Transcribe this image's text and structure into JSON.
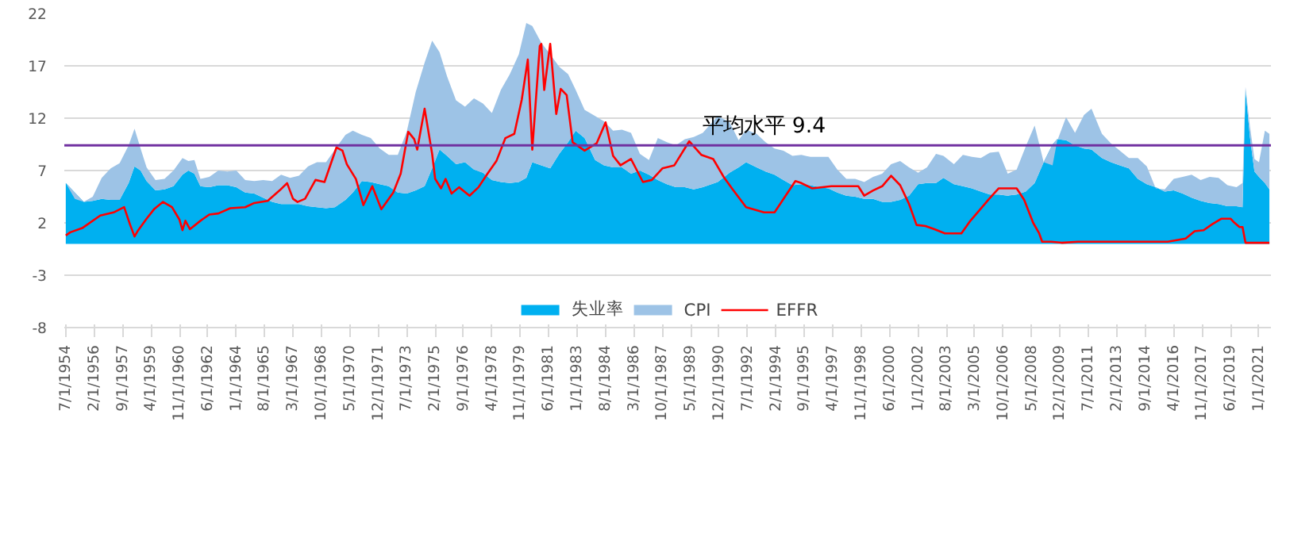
{
  "chart_data": {
    "type": "area",
    "stacked": true,
    "x": [
      "1954-07",
      "1955-01",
      "1955-07",
      "1956-01",
      "1956-07",
      "1957-01",
      "1957-07",
      "1958-01",
      "1958-05",
      "1958-09",
      "1959-01",
      "1959-07",
      "1960-01",
      "1960-07",
      "1961-01",
      "1961-05",
      "1961-09",
      "1962-01",
      "1962-07",
      "1963-01",
      "1963-07",
      "1964-01",
      "1964-07",
      "1965-01",
      "1965-07",
      "1966-01",
      "1966-07",
      "1967-01",
      "1967-07",
      "1968-01",
      "1968-07",
      "1969-01",
      "1969-07",
      "1970-02",
      "1970-07",
      "1971-01",
      "1971-07",
      "1972-01",
      "1972-07",
      "1973-01",
      "1973-07",
      "1974-01",
      "1974-07",
      "1974-12",
      "1975-05",
      "1975-10",
      "1976-04",
      "1976-10",
      "1977-04",
      "1977-10",
      "1978-04",
      "1978-10",
      "1979-04",
      "1979-10",
      "1980-03",
      "1980-07",
      "1981-01",
      "1981-07",
      "1982-01",
      "1982-07",
      "1982-12",
      "1983-06",
      "1984-01",
      "1984-07",
      "1985-01",
      "1985-07",
      "1986-01",
      "1986-07",
      "1987-01",
      "1987-07",
      "1988-01",
      "1988-07",
      "1989-01",
      "1989-07",
      "1990-01",
      "1990-11",
      "1991-07",
      "1992-01",
      "1992-06",
      "1993-01",
      "1993-07",
      "1994-01",
      "1994-07",
      "1995-01",
      "1995-07",
      "1996-01",
      "1996-07",
      "1997-01",
      "1997-07",
      "1998-01",
      "1998-07",
      "1999-01",
      "1999-07",
      "2000-01",
      "2000-07",
      "2001-01",
      "2001-07",
      "2002-01",
      "2002-07",
      "2003-01",
      "2003-06",
      "2004-01",
      "2004-07",
      "2005-01",
      "2005-07",
      "2006-01",
      "2006-07",
      "2007-01",
      "2007-07",
      "2008-01",
      "2008-07",
      "2009-01",
      "2009-07",
      "2009-10",
      "2010-04",
      "2010-10",
      "2011-04",
      "2011-09",
      "2012-04",
      "2012-10",
      "2013-04",
      "2013-10",
      "2014-04",
      "2014-10",
      "2015-04",
      "2015-10",
      "2016-04",
      "2016-10",
      "2017-04",
      "2017-10",
      "2018-04",
      "2018-10",
      "2019-04",
      "2019-10",
      "2020-02",
      "2020-04",
      "2020-07",
      "2020-10",
      "2021-01",
      "2021-05",
      "2021-08"
    ],
    "series": [
      {
        "name": "失业率",
        "color": "#00b0f0",
        "values": [
          5.8,
          4.9,
          4.0,
          4.1,
          4.3,
          4.2,
          4.2,
          5.8,
          7.4,
          7.0,
          6.0,
          5.1,
          5.2,
          5.5,
          6.6,
          7.0,
          6.7,
          5.5,
          5.4,
          5.6,
          5.6,
          5.4,
          4.9,
          4.8,
          4.4,
          4.0,
          3.8,
          3.8,
          3.8,
          3.6,
          3.5,
          3.4,
          3.5,
          4.2,
          4.9,
          6.0,
          5.9,
          5.7,
          5.5,
          4.9,
          4.8,
          5.1,
          5.5,
          7.2,
          9.0,
          8.4,
          7.6,
          7.8,
          7.1,
          6.8,
          6.1,
          5.9,
          5.8,
          5.9,
          6.3,
          7.8,
          7.5,
          7.2,
          8.6,
          9.7,
          10.8,
          10.1,
          8.0,
          7.5,
          7.3,
          7.3,
          6.7,
          7.0,
          6.6,
          6.1,
          5.7,
          5.4,
          5.4,
          5.2,
          5.4,
          5.9,
          6.8,
          7.3,
          7.8,
          7.3,
          6.9,
          6.6,
          6.1,
          5.6,
          5.7,
          5.6,
          5.4,
          5.3,
          4.9,
          4.6,
          4.5,
          4.3,
          4.3,
          4.0,
          4.0,
          4.2,
          4.6,
          5.7,
          5.8,
          5.8,
          6.3,
          5.7,
          5.5,
          5.3,
          5.0,
          4.7,
          4.7,
          4.6,
          4.7,
          5.0,
          5.8,
          7.8,
          9.5,
          10.0,
          9.9,
          9.4,
          9.1,
          9.0,
          8.2,
          7.8,
          7.5,
          7.2,
          6.2,
          5.7,
          5.4,
          5.0,
          5.1,
          4.8,
          4.4,
          4.1,
          3.9,
          3.8,
          3.6,
          3.6,
          3.5,
          14.7,
          10.2,
          6.9,
          6.4,
          5.8,
          5.2
        ]
      },
      {
        "name": "CPI",
        "color": "#9dc3e6",
        "values": [
          0.0,
          -0.6,
          0.0,
          0.4,
          2.0,
          3.0,
          3.5,
          3.6,
          3.6,
          2.1,
          1.3,
          1.0,
          1.0,
          1.5,
          1.6,
          0.9,
          1.3,
          0.7,
          1.0,
          1.4,
          1.3,
          1.6,
          1.2,
          1.2,
          1.7,
          2.0,
          2.8,
          2.5,
          2.7,
          3.8,
          4.3,
          4.4,
          5.5,
          6.2,
          5.9,
          4.4,
          4.2,
          3.4,
          3.0,
          3.6,
          5.9,
          9.4,
          11.8,
          12.2,
          9.3,
          7.6,
          6.1,
          5.3,
          6.8,
          6.6,
          6.4,
          8.8,
          10.4,
          12.2,
          14.8,
          13.0,
          11.7,
          10.9,
          8.3,
          6.5,
          3.9,
          2.7,
          4.2,
          4.2,
          3.5,
          3.6,
          3.9,
          1.6,
          1.4,
          4.0,
          4.0,
          4.0,
          4.6,
          5.0,
          5.2,
          6.3,
          4.8,
          2.6,
          3.1,
          3.2,
          2.8,
          2.5,
          2.8,
          2.8,
          2.8,
          2.7,
          2.9,
          3.0,
          2.2,
          1.6,
          1.7,
          1.6,
          2.1,
          2.7,
          3.6,
          3.7,
          2.7,
          1.1,
          1.5,
          2.8,
          2.1,
          1.9,
          3.0,
          3.0,
          3.2,
          4.0,
          4.1,
          2.1,
          2.4,
          4.3,
          5.5,
          0.0,
          -2.0,
          -0.2,
          2.2,
          1.2,
          3.2,
          3.9,
          2.3,
          1.8,
          1.4,
          1.0,
          2.0,
          1.7,
          -0.1,
          0.2,
          1.1,
          1.6,
          2.2,
          2.0,
          2.5,
          2.5,
          2.0,
          1.8,
          2.3,
          0.3,
          1.0,
          1.2,
          1.4,
          5.0,
          5.3
        ]
      },
      {
        "name": "EFFR",
        "type": "line",
        "color": "#ff0000",
        "x": [
          "1954-07",
          "1954-10",
          "1955-06",
          "1956-06",
          "1957-03",
          "1957-10",
          "1958-02",
          "1958-05",
          "1958-07",
          "1959-01",
          "1959-06",
          "1959-12",
          "1960-06",
          "1960-11",
          "1961-01",
          "1961-03",
          "1961-06",
          "1962-01",
          "1962-07",
          "1963-01",
          "1963-09",
          "1964-07",
          "1965-01",
          "1965-10",
          "1966-06",
          "1966-11",
          "1967-03",
          "1967-06",
          "1967-11",
          "1968-06",
          "1968-12",
          "1969-08",
          "1969-12",
          "1970-03",
          "1970-09",
          "1971-02",
          "1971-08",
          "1972-02",
          "1972-10",
          "1973-03",
          "1973-08",
          "1973-12",
          "1974-02",
          "1974-07",
          "1974-12",
          "1975-02",
          "1975-06",
          "1975-09",
          "1976-01",
          "1976-06",
          "1977-01",
          "1977-07",
          "1978-01",
          "1978-07",
          "1979-01",
          "1979-07",
          "1979-12",
          "1980-04",
          "1980-07",
          "1980-12",
          "1981-01",
          "1981-03",
          "1981-07",
          "1981-11",
          "1982-02",
          "1982-06",
          "1982-10",
          "1983-06",
          "1984-02",
          "1984-08",
          "1985-01",
          "1985-06",
          "1986-01",
          "1986-09",
          "1987-03",
          "1987-10",
          "1988-06",
          "1989-04",
          "1989-12",
          "1990-08",
          "1991-03",
          "1991-09",
          "1992-06",
          "1993-06",
          "1994-01",
          "1994-08",
          "1995-03",
          "1995-07",
          "1996-02",
          "1997-03",
          "1998-09",
          "1999-01",
          "1999-07",
          "2000-01",
          "2000-07",
          "2001-01",
          "2001-07",
          "2001-12",
          "2002-06",
          "2002-12",
          "2003-07",
          "2004-06",
          "2004-12",
          "2005-12",
          "2006-07",
          "2007-07",
          "2007-12",
          "2008-06",
          "2008-10",
          "2008-12",
          "2009-06",
          "2010-01",
          "2010-12",
          "2015-12",
          "2016-12",
          "2017-06",
          "2017-12",
          "2018-06",
          "2018-12",
          "2019-06",
          "2019-08",
          "2019-12",
          "2020-02",
          "2020-04",
          "2021-08"
        ],
        "values": [
          0.8,
          1.1,
          1.5,
          2.7,
          3.0,
          3.5,
          1.8,
          0.7,
          1.2,
          2.4,
          3.3,
          4.0,
          3.5,
          2.3,
          1.3,
          2.2,
          1.4,
          2.2,
          2.8,
          2.9,
          3.4,
          3.5,
          3.9,
          4.1,
          5.1,
          5.8,
          4.3,
          4.0,
          4.3,
          6.1,
          5.9,
          9.2,
          8.9,
          7.6,
          6.2,
          3.7,
          5.5,
          3.3,
          4.9,
          6.7,
          10.7,
          10.0,
          9.0,
          12.9,
          8.6,
          6.2,
          5.3,
          6.2,
          4.8,
          5.4,
          4.6,
          5.4,
          6.7,
          7.9,
          10.1,
          10.5,
          13.8,
          17.6,
          9.0,
          18.9,
          19.1,
          14.7,
          19.1,
          12.4,
          14.8,
          14.2,
          9.7,
          8.9,
          9.6,
          11.6,
          8.4,
          7.5,
          8.1,
          5.9,
          6.1,
          7.2,
          7.5,
          9.8,
          8.5,
          8.1,
          6.4,
          5.2,
          3.5,
          3.0,
          3.0,
          4.5,
          6.0,
          5.8,
          5.3,
          5.5,
          5.5,
          4.6,
          5.1,
          5.5,
          6.5,
          5.6,
          3.8,
          1.8,
          1.7,
          1.4,
          1.0,
          1.0,
          2.2,
          4.2,
          5.3,
          5.3,
          4.2,
          2.0,
          1.0,
          0.2,
          0.2,
          0.1,
          0.2,
          0.2,
          0.5,
          1.2,
          1.3,
          1.9,
          2.4,
          2.4,
          2.1,
          1.6,
          1.6,
          0.1,
          0.1
        ]
      }
    ],
    "xlim": [
      "1954-06",
      "2021-09"
    ],
    "xticks": [
      {
        "value": "1954-07",
        "label": "7/1/1954"
      },
      {
        "value": "1956-02",
        "label": "2/1/1956"
      },
      {
        "value": "1957-09",
        "label": "9/1/1957"
      },
      {
        "value": "1959-04",
        "label": "4/1/1959"
      },
      {
        "value": "1960-11",
        "label": "11/1/1960"
      },
      {
        "value": "1962-06",
        "label": "6/1/1962"
      },
      {
        "value": "1964-01",
        "label": "1/1/1964"
      },
      {
        "value": "1965-08",
        "label": "8/1/1965"
      },
      {
        "value": "1967-03",
        "label": "3/1/1967"
      },
      {
        "value": "1968-10",
        "label": "10/1/1968"
      },
      {
        "value": "1970-05",
        "label": "5/1/1970"
      },
      {
        "value": "1971-12",
        "label": "12/1/1971"
      },
      {
        "value": "1973-07",
        "label": "7/1/1973"
      },
      {
        "value": "1975-02",
        "label": "2/1/1975"
      },
      {
        "value": "1976-09",
        "label": "9/1/1976"
      },
      {
        "value": "1978-04",
        "label": "4/1/1978"
      },
      {
        "value": "1979-11",
        "label": "11/1/1979"
      },
      {
        "value": "1981-06",
        "label": "6/1/1981"
      },
      {
        "value": "1983-01",
        "label": "1/1/1983"
      },
      {
        "value": "1984-08",
        "label": "8/1/1984"
      },
      {
        "value": "1986-03",
        "label": "3/1/1986"
      },
      {
        "value": "1987-10",
        "label": "10/1/1987"
      },
      {
        "value": "1989-05",
        "label": "5/1/1989"
      },
      {
        "value": "1990-12",
        "label": "12/1/1990"
      },
      {
        "value": "1992-07",
        "label": "7/1/1992"
      },
      {
        "value": "1994-02",
        "label": "2/1/1994"
      },
      {
        "value": "1995-09",
        "label": "9/1/1995"
      },
      {
        "value": "1997-04",
        "label": "4/1/1997"
      },
      {
        "value": "1998-11",
        "label": "11/1/1998"
      },
      {
        "value": "2000-06",
        "label": "6/1/2000"
      },
      {
        "value": "2002-01",
        "label": "1/1/2002"
      },
      {
        "value": "2003-08",
        "label": "8/1/2003"
      },
      {
        "value": "2005-03",
        "label": "3/1/2005"
      },
      {
        "value": "2006-10",
        "label": "10/1/2006"
      },
      {
        "value": "2008-05",
        "label": "5/1/2008"
      },
      {
        "value": "2009-12",
        "label": "12/1/2009"
      },
      {
        "value": "2011-07",
        "label": "7/1/2011"
      },
      {
        "value": "2013-02",
        "label": "2/1/2013"
      },
      {
        "value": "2014-09",
        "label": "9/1/2014"
      },
      {
        "value": "2016-04",
        "label": "4/1/2016"
      },
      {
        "value": "2017-11",
        "label": "11/1/2017"
      },
      {
        "value": "2019-06",
        "label": "6/1/2019"
      },
      {
        "value": "2021-01",
        "label": "1/1/2021"
      }
    ],
    "ylim": [
      -8,
      22
    ],
    "yticks": [
      -8,
      -3,
      2,
      7,
      12,
      17,
      22
    ],
    "grid": "y",
    "legend": "bottom",
    "ref_lines": [
      {
        "axis": "y",
        "value": 9.4,
        "label": "平均水平 9.4",
        "color": "#7030a0"
      }
    ]
  }
}
